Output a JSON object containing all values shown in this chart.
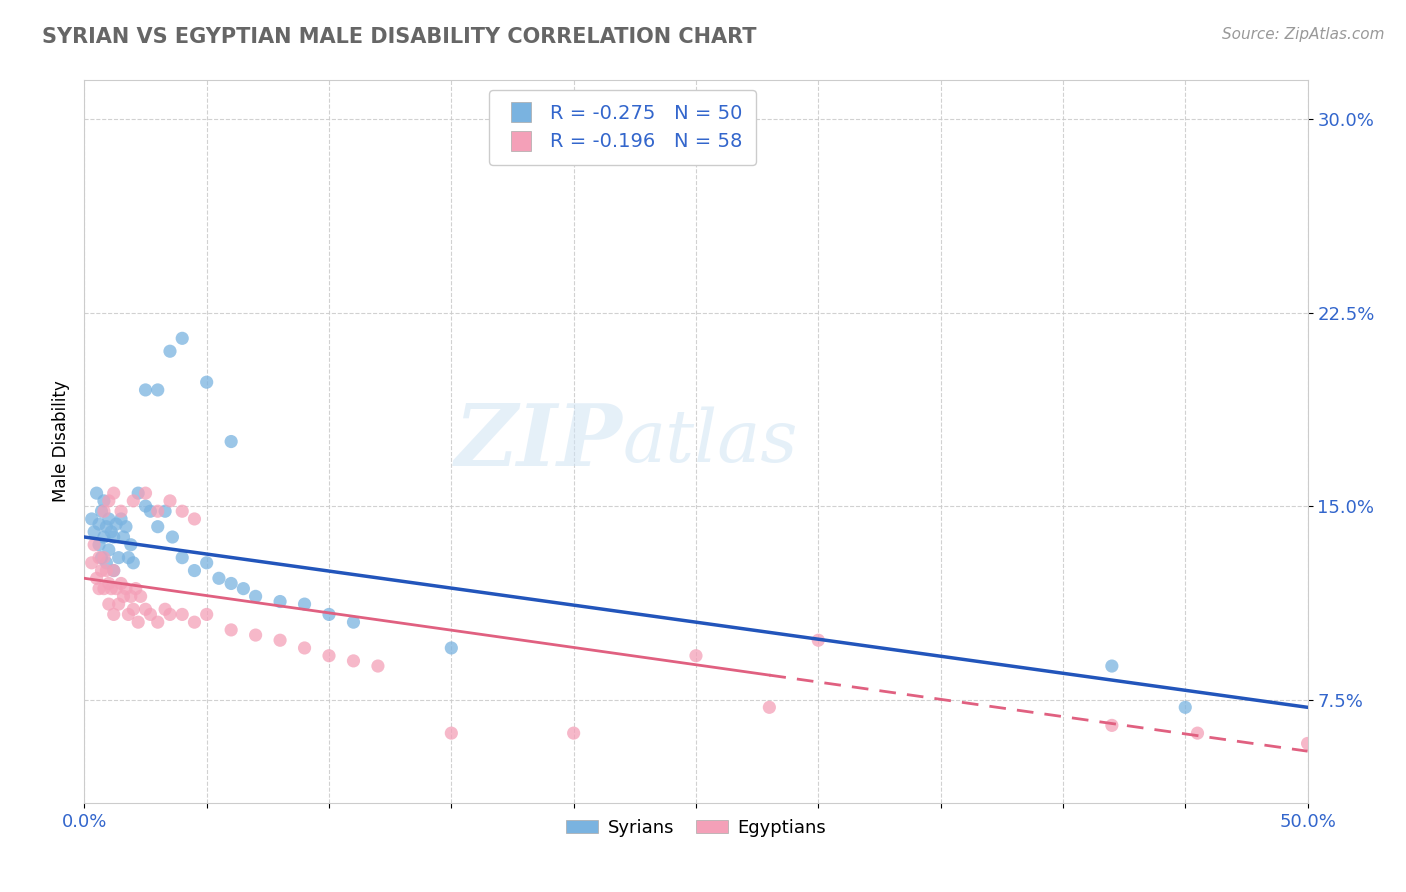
{
  "title": "SYRIAN VS EGYPTIAN MALE DISABILITY CORRELATION CHART",
  "source_text": "Source: ZipAtlas.com",
  "ylabel": "Male Disability",
  "xlim": [
    0.0,
    0.5
  ],
  "ylim": [
    0.035,
    0.315
  ],
  "yticks": [
    0.075,
    0.15,
    0.225,
    0.3
  ],
  "ytick_labels": [
    "7.5%",
    "15.0%",
    "22.5%",
    "30.0%"
  ],
  "xticks": [
    0.0,
    0.05,
    0.1,
    0.15,
    0.2,
    0.25,
    0.3,
    0.35,
    0.4,
    0.45,
    0.5
  ],
  "syrian_color": "#7ab3e0",
  "egyptian_color": "#f4a0b8",
  "syrian_line_color": "#2255bb",
  "egyptian_line_color": "#e06080",
  "R_syrian": -0.275,
  "N_syrian": 50,
  "R_egyptian": -0.196,
  "N_egyptian": 58,
  "watermark": "ZIPatlas",
  "legend_label_syrian": "Syrians",
  "legend_label_egyptian": "Egyptians",
  "title_color": "#666666",
  "source_color": "#999999",
  "tick_color": "#3366cc",
  "grid_color": "#cccccc",
  "syrian_line_y0": 0.138,
  "syrian_line_y1": 0.072,
  "egyptian_line_y0": 0.122,
  "egyptian_line_y1": 0.055,
  "syrian_x": [
    0.003,
    0.004,
    0.005,
    0.006,
    0.006,
    0.007,
    0.007,
    0.008,
    0.008,
    0.009,
    0.009,
    0.01,
    0.01,
    0.011,
    0.012,
    0.012,
    0.013,
    0.014,
    0.015,
    0.016,
    0.017,
    0.018,
    0.019,
    0.02,
    0.022,
    0.025,
    0.027,
    0.03,
    0.033,
    0.036,
    0.04,
    0.045,
    0.05,
    0.055,
    0.06,
    0.065,
    0.07,
    0.08,
    0.09,
    0.1,
    0.025,
    0.03,
    0.035,
    0.04,
    0.05,
    0.06,
    0.11,
    0.15,
    0.42,
    0.45
  ],
  "syrian_y": [
    0.145,
    0.14,
    0.155,
    0.143,
    0.135,
    0.148,
    0.13,
    0.152,
    0.138,
    0.142,
    0.128,
    0.145,
    0.133,
    0.14,
    0.138,
    0.125,
    0.143,
    0.13,
    0.145,
    0.138,
    0.142,
    0.13,
    0.135,
    0.128,
    0.155,
    0.15,
    0.148,
    0.142,
    0.148,
    0.138,
    0.13,
    0.125,
    0.128,
    0.122,
    0.12,
    0.118,
    0.115,
    0.113,
    0.112,
    0.108,
    0.195,
    0.195,
    0.21,
    0.215,
    0.198,
    0.175,
    0.105,
    0.095,
    0.088,
    0.072
  ],
  "egyptian_x": [
    0.003,
    0.004,
    0.005,
    0.006,
    0.006,
    0.007,
    0.008,
    0.008,
    0.009,
    0.01,
    0.01,
    0.011,
    0.012,
    0.012,
    0.013,
    0.014,
    0.015,
    0.016,
    0.017,
    0.018,
    0.019,
    0.02,
    0.021,
    0.022,
    0.023,
    0.025,
    0.027,
    0.03,
    0.033,
    0.035,
    0.04,
    0.045,
    0.05,
    0.06,
    0.07,
    0.08,
    0.09,
    0.1,
    0.11,
    0.12,
    0.008,
    0.01,
    0.012,
    0.015,
    0.02,
    0.025,
    0.03,
    0.035,
    0.04,
    0.045,
    0.15,
    0.2,
    0.25,
    0.3,
    0.28,
    0.42,
    0.455,
    0.5
  ],
  "egyptian_y": [
    0.128,
    0.135,
    0.122,
    0.13,
    0.118,
    0.125,
    0.13,
    0.118,
    0.125,
    0.12,
    0.112,
    0.118,
    0.125,
    0.108,
    0.118,
    0.112,
    0.12,
    0.115,
    0.118,
    0.108,
    0.115,
    0.11,
    0.118,
    0.105,
    0.115,
    0.11,
    0.108,
    0.105,
    0.11,
    0.108,
    0.108,
    0.105,
    0.108,
    0.102,
    0.1,
    0.098,
    0.095,
    0.092,
    0.09,
    0.088,
    0.148,
    0.152,
    0.155,
    0.148,
    0.152,
    0.155,
    0.148,
    0.152,
    0.148,
    0.145,
    0.062,
    0.062,
    0.092,
    0.098,
    0.072,
    0.065,
    0.062,
    0.058
  ]
}
